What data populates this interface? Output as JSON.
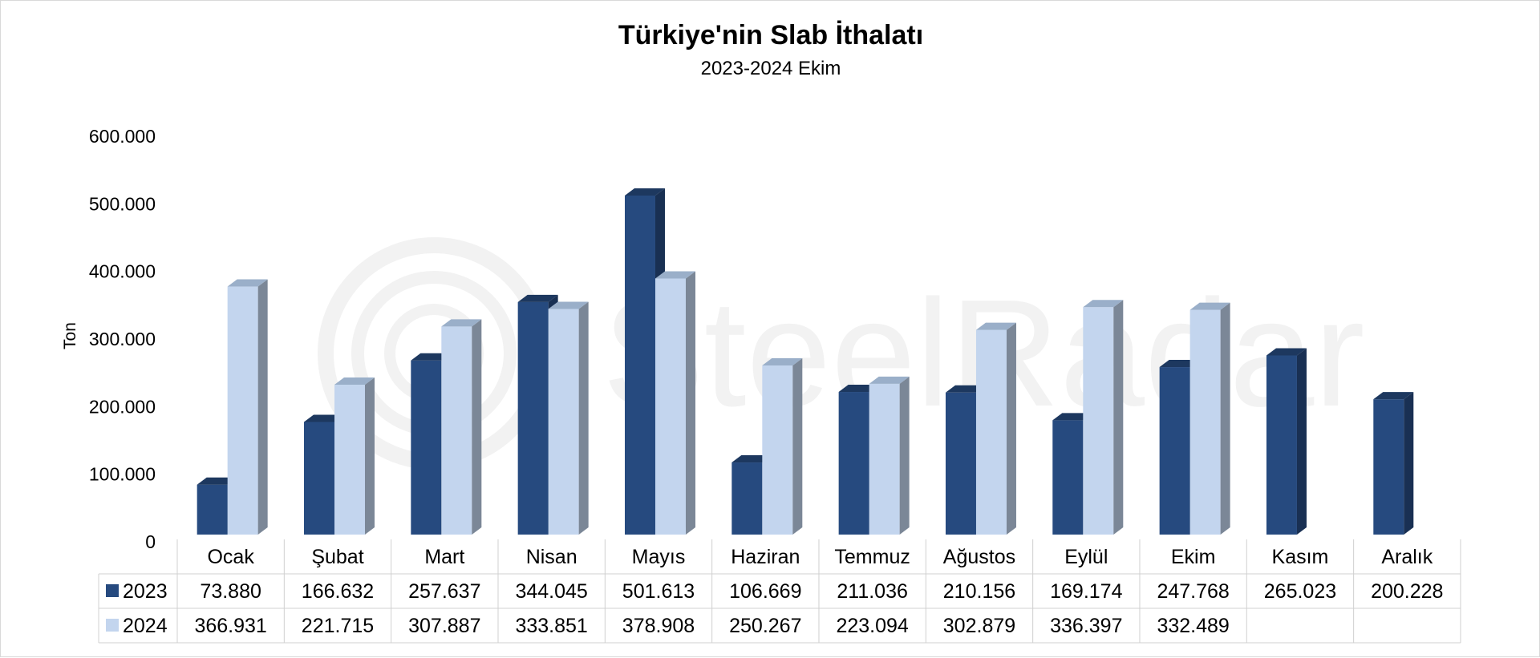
{
  "chart_data": {
    "type": "bar",
    "title": "Türkiye'nin Slab İthalatı",
    "subtitle": "2023-2024 Ekim",
    "ylabel": "Ton",
    "ylim": [
      0,
      600000
    ],
    "yticks": [
      "0",
      "100.000",
      "200.000",
      "300.000",
      "400.000",
      "500.000",
      "600.000"
    ],
    "grid": false,
    "categories": [
      "Ocak",
      "Şubat",
      "Mart",
      "Nisan",
      "Mayıs",
      "Haziran",
      "Temmuz",
      "Ağustos",
      "Eylül",
      "Ekim",
      "Kasım",
      "Aralık"
    ],
    "series": [
      {
        "name": "2023",
        "color": "#264a7f",
        "values": [
          73880,
          166632,
          257637,
          344045,
          501613,
          106669,
          211036,
          210156,
          169174,
          247768,
          265023,
          200228
        ],
        "labels": [
          "73.880",
          "166.632",
          "257.637",
          "344.045",
          "501.613",
          "106.669",
          "211.036",
          "210.156",
          "169.174",
          "247.768",
          "265.023",
          "200.228"
        ]
      },
      {
        "name": "2024",
        "color": "#c3d5ee",
        "values": [
          366931,
          221715,
          307887,
          333851,
          378908,
          250267,
          223094,
          302879,
          336397,
          332489,
          null,
          null
        ],
        "labels": [
          "366.931",
          "221.715",
          "307.887",
          "333.851",
          "378.908",
          "250.267",
          "223.094",
          "302.879",
          "336.397",
          "332.489",
          "",
          ""
        ]
      }
    ]
  },
  "watermark": {
    "text": "SteelRadar"
  }
}
